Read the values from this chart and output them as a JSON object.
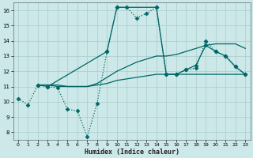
{
  "xlabel": "Humidex (Indice chaleur)",
  "xlim": [
    -0.5,
    23.5
  ],
  "ylim": [
    7.5,
    16.5
  ],
  "yticks": [
    8,
    9,
    10,
    11,
    12,
    13,
    14,
    15,
    16
  ],
  "xticks": [
    0,
    1,
    2,
    3,
    4,
    5,
    6,
    7,
    8,
    9,
    10,
    11,
    12,
    13,
    14,
    15,
    16,
    17,
    18,
    19,
    20,
    21,
    22,
    23
  ],
  "background_color": "#cce8e8",
  "grid_color": "#aacccc",
  "line_color": "#006666",
  "series": [
    {
      "x": [
        0,
        1,
        2,
        3,
        4,
        5,
        6,
        7,
        8,
        9,
        10,
        11,
        12,
        13,
        14,
        15,
        16,
        17,
        18,
        19,
        20,
        21,
        22,
        23
      ],
      "y": [
        10.2,
        9.8,
        11.1,
        11.0,
        10.9,
        9.5,
        9.4,
        7.7,
        9.9,
        13.3,
        16.2,
        16.2,
        15.5,
        15.8,
        16.2,
        11.8,
        11.8,
        12.1,
        12.2,
        14.0,
        13.3,
        13.0,
        12.3,
        11.8
      ],
      "linestyle": ":",
      "marker": "D",
      "markersize": 2.5,
      "linewidth": 0.9
    },
    {
      "x": [
        2,
        3,
        4,
        5,
        6,
        7,
        8,
        9,
        10,
        11,
        12,
        13,
        14,
        15,
        16,
        17,
        18,
        19,
        20,
        21,
        22,
        23
      ],
      "y": [
        11.1,
        11.1,
        11.0,
        11.0,
        11.0,
        11.0,
        11.1,
        11.2,
        11.4,
        11.5,
        11.6,
        11.7,
        11.8,
        11.8,
        11.8,
        11.8,
        11.8,
        11.8,
        11.8,
        11.8,
        11.8,
        11.8
      ],
      "linestyle": "-",
      "marker": null,
      "markersize": 0,
      "linewidth": 0.9
    },
    {
      "x": [
        2,
        3,
        4,
        5,
        6,
        7,
        8,
        9,
        10,
        11,
        12,
        13,
        14,
        15,
        16,
        17,
        18,
        19,
        20,
        21,
        22,
        23
      ],
      "y": [
        11.1,
        11.1,
        11.1,
        11.0,
        11.0,
        11.0,
        11.2,
        11.6,
        12.0,
        12.3,
        12.6,
        12.8,
        13.0,
        13.0,
        13.1,
        13.3,
        13.5,
        13.7,
        13.8,
        13.8,
        13.8,
        13.5
      ],
      "linestyle": "-",
      "marker": null,
      "markersize": 0,
      "linewidth": 0.9
    },
    {
      "x": [
        2,
        3,
        9,
        10,
        14,
        15,
        16,
        17,
        18,
        19,
        20,
        21,
        22,
        23
      ],
      "y": [
        11.1,
        11.0,
        13.3,
        16.2,
        16.2,
        11.8,
        11.8,
        12.1,
        12.4,
        13.7,
        13.3,
        13.0,
        12.3,
        11.8
      ],
      "linestyle": "-",
      "marker": "D",
      "markersize": 2.5,
      "linewidth": 0.9
    }
  ]
}
